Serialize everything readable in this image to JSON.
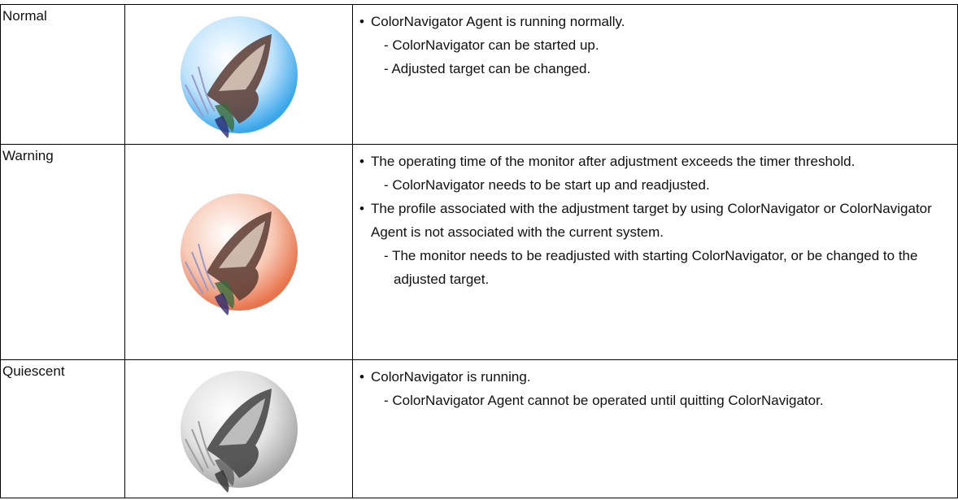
{
  "table": {
    "rows": [
      {
        "status": "Normal",
        "items": [
          {
            "text": "ColorNavigator Agent is running normally.",
            "subs": [
              "- ColorNavigator can be started up.",
              "- Adjusted target can be changed."
            ]
          }
        ]
      },
      {
        "status": "Warning",
        "items": [
          {
            "text": "The operating time of the monitor after adjustment exceeds the timer threshold.",
            "subs": [
              "- ColorNavigator needs to be start up and readjusted."
            ]
          },
          {
            "text": "The profile associated with the adjustment target by using ColorNavigator or ColorNavigator Agent is not associated with the current system.",
            "subs": [
              "- The monitor needs to be readjusted with starting ColorNavigator, or be changed to the adjusted target."
            ]
          }
        ]
      },
      {
        "status": "Quiescent",
        "items": [
          {
            "text": "ColorNavigator is running.",
            "subs": [
              "- ColorNavigator Agent cannot be operated until quitting ColorNavigator."
            ]
          }
        ]
      }
    ]
  }
}
